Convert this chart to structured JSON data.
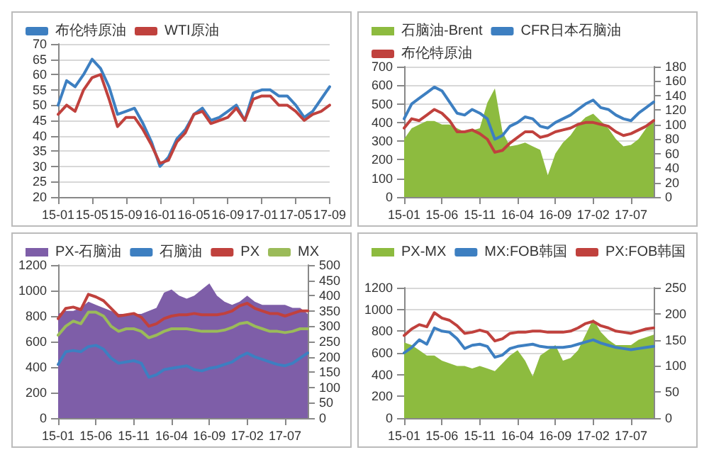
{
  "chart_data": [
    {
      "type": "line",
      "categories": [
        "15-01",
        null,
        null,
        null,
        "15-05",
        null,
        null,
        null,
        "15-09",
        null,
        null,
        null,
        "16-01",
        null,
        null,
        null,
        "16-05",
        null,
        null,
        null,
        "16-09",
        null,
        null,
        null,
        "17-01",
        null,
        null,
        null,
        "17-05",
        null,
        null,
        null,
        "17-09"
      ],
      "ylim": [
        20,
        70
      ],
      "yticks": [
        20,
        25,
        30,
        35,
        40,
        45,
        50,
        55,
        60,
        65,
        70
      ],
      "grid": "y",
      "legend": "top",
      "marker": "none",
      "series": [
        {
          "name": "布伦特原油",
          "color": "#3d7fc1",
          "values": [
            50,
            58,
            56,
            60,
            65,
            62,
            56,
            47,
            48,
            49,
            44,
            38,
            30,
            33,
            39,
            42,
            47,
            49,
            45,
            46,
            48,
            50,
            45,
            54,
            55,
            55,
            53,
            53,
            50,
            46,
            48,
            52,
            56
          ]
        },
        {
          "name": "WTI原油",
          "color": "#c0413d",
          "values": [
            47,
            50,
            48,
            55,
            59,
            60,
            52,
            43,
            46,
            46,
            42,
            37,
            31,
            32,
            38,
            41,
            47,
            48,
            44,
            45,
            46,
            49,
            45,
            52,
            53,
            53,
            50,
            50,
            48,
            45,
            47,
            48,
            50
          ]
        }
      ]
    },
    {
      "type": "line",
      "categories": [
        "15-01",
        null,
        null,
        null,
        null,
        "15-06",
        null,
        null,
        null,
        null,
        "15-11",
        null,
        null,
        null,
        null,
        "16-04",
        null,
        null,
        null,
        null,
        "16-09",
        null,
        null,
        null,
        null,
        "17-02",
        null,
        null,
        null,
        null,
        "17-07",
        null,
        null,
        null
      ],
      "ylim": [
        0,
        700
      ],
      "yticks": [
        0,
        100,
        200,
        300,
        400,
        500,
        600,
        700
      ],
      "y2lim": [
        0,
        180
      ],
      "y2ticks": [
        0,
        20,
        40,
        60,
        80,
        100,
        120,
        140,
        160,
        180
      ],
      "grid": "y",
      "legend": "top",
      "marker": "none",
      "series": [
        {
          "name": "石脑油-Brent",
          "type": "area",
          "axis": "y2",
          "color": "#8dbb3f",
          "values": [
            80,
            95,
            100,
            105,
            105,
            100,
            100,
            95,
            90,
            92,
            95,
            130,
            150,
            90,
            70,
            72,
            75,
            70,
            65,
            30,
            60,
            75,
            85,
            100,
            110,
            115,
            105,
            95,
            80,
            70,
            72,
            80,
            95,
            105
          ]
        },
        {
          "name": "CFR日本石脑油",
          "color": "#3d7fc1",
          "values": [
            420,
            500,
            530,
            560,
            590,
            570,
            510,
            450,
            440,
            470,
            450,
            420,
            310,
            330,
            380,
            400,
            430,
            420,
            380,
            370,
            400,
            420,
            440,
            470,
            500,
            520,
            480,
            470,
            440,
            420,
            410,
            450,
            480,
            510
          ]
        },
        {
          "name": "布伦特原油",
          "color": "#c0413d",
          "values": [
            370,
            420,
            410,
            440,
            470,
            450,
            410,
            350,
            350,
            360,
            340,
            310,
            240,
            250,
            290,
            320,
            350,
            350,
            320,
            330,
            350,
            360,
            370,
            390,
            400,
            400,
            390,
            380,
            350,
            330,
            340,
            360,
            380,
            410
          ]
        }
      ]
    },
    {
      "type": "line",
      "categories": [
        "15-01",
        null,
        null,
        null,
        null,
        "15-06",
        null,
        null,
        null,
        null,
        "15-11",
        null,
        null,
        null,
        null,
        "16-04",
        null,
        null,
        null,
        null,
        "16-09",
        null,
        null,
        null,
        null,
        "17-02",
        null,
        null,
        null,
        null,
        "17-07",
        null,
        null,
        null
      ],
      "ylim": [
        0,
        1200
      ],
      "yticks": [
        0,
        200,
        400,
        600,
        800,
        1000,
        1200
      ],
      "y2lim": [
        0,
        500
      ],
      "y2ticks": [
        0,
        50,
        100,
        150,
        200,
        250,
        300,
        350,
        400,
        450,
        500
      ],
      "grid": "y",
      "legend": "top",
      "marker": "none",
      "series": [
        {
          "name": "PX-石脑油",
          "type": "area",
          "axis": "y2",
          "color": "#7e5ea8",
          "values": [
            340,
            350,
            350,
            360,
            380,
            370,
            360,
            350,
            340,
            340,
            340,
            340,
            350,
            360,
            410,
            420,
            400,
            390,
            400,
            420,
            440,
            400,
            380,
            370,
            380,
            400,
            380,
            370,
            370,
            370,
            370,
            360,
            360,
            340
          ]
        },
        {
          "name": "石脑油",
          "color": "#3d7fc1",
          "values": [
            420,
            520,
            530,
            520,
            560,
            570,
            540,
            470,
            430,
            440,
            450,
            430,
            320,
            340,
            380,
            390,
            400,
            410,
            380,
            370,
            390,
            400,
            420,
            440,
            480,
            510,
            480,
            460,
            440,
            420,
            410,
            430,
            470,
            510
          ]
        },
        {
          "name": "PX",
          "color": "#c0413d",
          "values": [
            780,
            860,
            870,
            850,
            970,
            950,
            920,
            860,
            800,
            810,
            820,
            790,
            720,
            740,
            780,
            800,
            810,
            810,
            820,
            810,
            810,
            810,
            820,
            840,
            880,
            900,
            860,
            840,
            820,
            820,
            800,
            820,
            840,
            840
          ]
        },
        {
          "name": "MX",
          "color": "#9bbb59",
          "values": [
            650,
            720,
            760,
            740,
            830,
            830,
            800,
            720,
            680,
            700,
            700,
            680,
            630,
            650,
            680,
            700,
            700,
            700,
            690,
            680,
            680,
            680,
            690,
            710,
            740,
            750,
            720,
            700,
            680,
            680,
            670,
            680,
            700,
            700
          ]
        }
      ]
    },
    {
      "type": "line",
      "categories": [
        "15-01",
        null,
        null,
        null,
        null,
        "15-06",
        null,
        null,
        null,
        null,
        "15-11",
        null,
        null,
        null,
        null,
        "16-04",
        null,
        null,
        null,
        null,
        "16-09",
        null,
        null,
        null,
        null,
        "17-02",
        null,
        null,
        null,
        null,
        "17-07",
        null,
        null,
        null
      ],
      "ylim": [
        0,
        1200
      ],
      "yticks": [
        0,
        200,
        400,
        600,
        800,
        1000,
        1200
      ],
      "y2lim": [
        0,
        250
      ],
      "y2ticks": [
        0,
        50,
        100,
        150,
        200,
        250
      ],
      "grid": "y",
      "legend": "top",
      "marker": "none",
      "series": [
        {
          "name": "PX-MX",
          "type": "area",
          "axis": "y2",
          "color": "#8dbb3f",
          "values": [
            145,
            140,
            130,
            120,
            120,
            110,
            105,
            100,
            100,
            95,
            100,
            95,
            90,
            105,
            120,
            130,
            110,
            80,
            120,
            130,
            140,
            110,
            115,
            130,
            160,
            190,
            165,
            150,
            140,
            140,
            140,
            150,
            155,
            160
          ]
        },
        {
          "name": "MX:FOB韩国",
          "color": "#3d7fc1",
          "values": [
            600,
            650,
            720,
            680,
            830,
            800,
            790,
            730,
            640,
            670,
            680,
            660,
            560,
            580,
            640,
            660,
            670,
            680,
            660,
            650,
            650,
            650,
            660,
            680,
            700,
            720,
            690,
            670,
            650,
            640,
            630,
            640,
            650,
            660
          ]
        },
        {
          "name": "PX:FOB韩国",
          "color": "#c0413d",
          "values": [
            760,
            820,
            860,
            840,
            970,
            920,
            900,
            850,
            780,
            790,
            810,
            790,
            710,
            730,
            780,
            790,
            790,
            800,
            800,
            790,
            790,
            790,
            800,
            830,
            870,
            890,
            850,
            830,
            800,
            790,
            780,
            800,
            820,
            830
          ]
        }
      ]
    }
  ]
}
